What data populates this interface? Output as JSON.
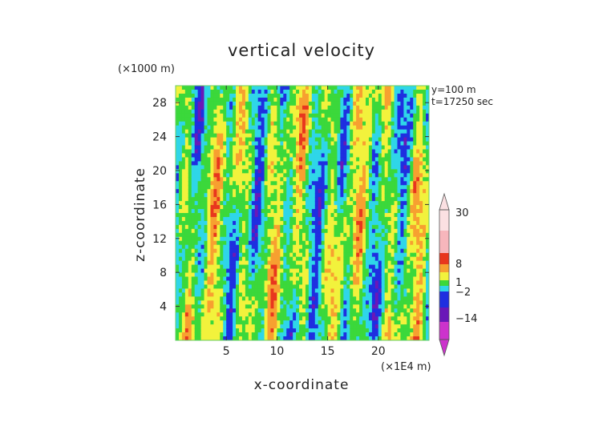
{
  "chart_data": {
    "type": "heatmap",
    "title": "vertical velocity",
    "xlabel": "x-coordinate",
    "ylabel": "z-coordinate",
    "x_scale_note": "(×1E4 m)",
    "y_scale_note": "(×1000 m)",
    "info_lines": [
      "y=100 m",
      "t=17250 sec"
    ],
    "x_ticks": [
      "5",
      "10",
      "15",
      "20"
    ],
    "x_tick_values": [
      5,
      10,
      15,
      20
    ],
    "xlim": [
      0,
      25
    ],
    "y_ticks": [
      "4",
      "8",
      "12",
      "16",
      "20",
      "24",
      "28"
    ],
    "y_tick_values": [
      4,
      8,
      12,
      16,
      20,
      24,
      28
    ],
    "ylim": [
      0,
      30
    ],
    "colorbar": {
      "levels": [
        -30,
        -14,
        -8,
        -2,
        1,
        8,
        30
      ],
      "labels": [
        {
          "value": 30,
          "text": "30"
        },
        {
          "value": 8,
          "text": "8"
        },
        {
          "value": 1,
          "text": "1"
        },
        {
          "value": -2,
          "text": "−2"
        },
        {
          "value": -14,
          "text": "−14"
        }
      ]
    }
  },
  "colors": {
    "magenta": "#cc33cc",
    "purple": "#6a18b8",
    "blue": "#1f2fe0",
    "cyan": "#2fd6e8",
    "green": "#3bd83b",
    "yellow": "#f2f23c",
    "orange": "#f7a030",
    "red": "#e8361e",
    "pink": "#f7b6bc",
    "frame": "#66cc66"
  }
}
